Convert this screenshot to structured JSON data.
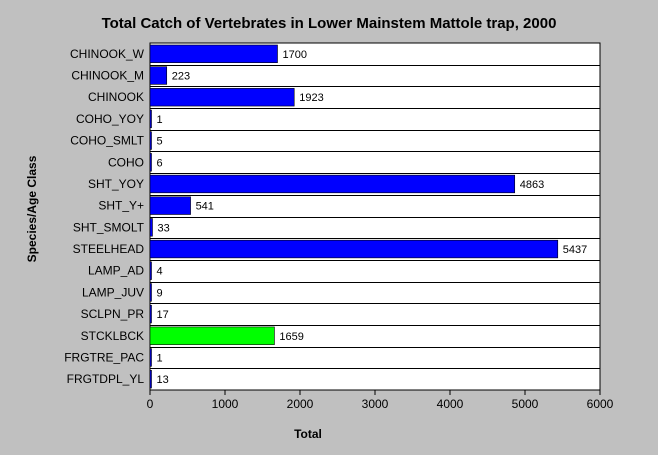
{
  "chart_data": {
    "type": "bar",
    "orientation": "horizontal",
    "title": "Total Catch of Vertebrates in Lower Mainstem Mattole trap, 2000",
    "xlabel": "Total",
    "ylabel": "Species/Age Class",
    "xlim": [
      0,
      6000
    ],
    "xticks": [
      0,
      1000,
      2000,
      3000,
      4000,
      5000,
      6000
    ],
    "grid": "horizontal",
    "legend": "none",
    "colors": {
      "background": "#c0c0c0",
      "plot_area": "#ffffff",
      "default_bar": "#0000ff",
      "highlight_bar": "#00ff00"
    },
    "categories": [
      "CHINOOK_W",
      "CHINOOK_M",
      "CHINOOK",
      "COHO_YOY",
      "COHO_SMLT",
      "COHO",
      "SHT_YOY",
      "SHT_Y+",
      "SHT_SMOLT",
      "STEELHEAD",
      "LAMP_AD",
      "LAMP_JUV",
      "SCLPN_PR",
      "STCKLBCK",
      "FRGTRE_PAC",
      "FRGTDPL_YL"
    ],
    "values": [
      1700,
      223,
      1923,
      1,
      5,
      6,
      4863,
      541,
      33,
      5437,
      4,
      9,
      17,
      1659,
      1,
      13
    ],
    "bar_colors": [
      "#0000ff",
      "#0000ff",
      "#0000ff",
      "#0000ff",
      "#0000ff",
      "#0000ff",
      "#0000ff",
      "#0000ff",
      "#0000ff",
      "#0000ff",
      "#0000ff",
      "#0000ff",
      "#0000ff",
      "#00ff00",
      "#0000ff",
      "#0000ff"
    ]
  }
}
